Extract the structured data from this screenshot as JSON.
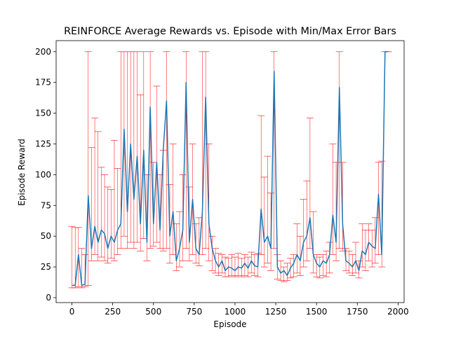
{
  "chart_data": {
    "type": "errorbar-line",
    "title": "REINFORCE Average Rewards vs. Episode with Min/Max Error Bars",
    "x_label": "Episode",
    "y_label": "Episode Reward",
    "xlim": [
      -97,
      2037
    ],
    "ylim": [
      -4,
      209
    ],
    "xticks": [
      0,
      250,
      500,
      750,
      1000,
      1250,
      1500,
      1750,
      2000
    ],
    "yticks": [
      0,
      25,
      50,
      75,
      100,
      125,
      150,
      175,
      200
    ],
    "line_color": "#1f77b4",
    "error_color": "#ff0000",
    "x": [
      0,
      20,
      40,
      60,
      80,
      100,
      120,
      140,
      160,
      180,
      200,
      220,
      240,
      260,
      280,
      300,
      320,
      340,
      360,
      380,
      400,
      420,
      440,
      460,
      480,
      500,
      520,
      540,
      560,
      580,
      600,
      620,
      640,
      660,
      680,
      700,
      720,
      740,
      760,
      780,
      800,
      820,
      840,
      860,
      880,
      900,
      920,
      940,
      960,
      980,
      1000,
      1020,
      1040,
      1060,
      1080,
      1100,
      1120,
      1140,
      1160,
      1180,
      1200,
      1220,
      1240,
      1260,
      1280,
      1300,
      1320,
      1340,
      1360,
      1380,
      1400,
      1420,
      1440,
      1460,
      1480,
      1500,
      1520,
      1540,
      1560,
      1580,
      1600,
      1620,
      1640,
      1660,
      1680,
      1700,
      1720,
      1740,
      1760,
      1780,
      1800,
      1820,
      1840,
      1860,
      1880,
      1900,
      1920,
      1940
    ],
    "values": [
      10,
      10,
      35,
      10,
      11,
      83,
      40,
      58,
      45,
      55,
      52,
      40,
      50,
      45,
      55,
      60,
      137,
      70,
      125,
      80,
      115,
      60,
      120,
      45,
      155,
      60,
      110,
      55,
      120,
      160,
      50,
      70,
      30,
      40,
      55,
      175,
      45,
      80,
      40,
      35,
      70,
      163,
      60,
      40,
      30,
      25,
      30,
      22,
      25,
      24,
      22,
      25,
      24,
      28,
      24,
      30,
      26,
      25,
      72,
      45,
      50,
      40,
      184,
      25,
      20,
      22,
      18,
      24,
      28,
      35,
      30,
      45,
      50,
      65,
      35,
      28,
      25,
      30,
      28,
      35,
      67,
      45,
      171,
      60,
      30,
      28,
      25,
      30,
      22,
      38,
      35,
      45,
      42,
      40,
      84,
      35,
      200,
      200
    ],
    "lower": [
      8,
      8,
      9,
      8,
      9,
      10,
      30,
      35,
      30,
      33,
      30,
      28,
      32,
      30,
      35,
      40,
      50,
      40,
      45,
      40,
      45,
      38,
      48,
      30,
      40,
      42,
      45,
      40,
      38,
      40,
      28,
      35,
      22,
      25,
      30,
      40,
      30,
      35,
      28,
      26,
      35,
      40,
      30,
      22,
      20,
      18,
      20,
      17,
      17,
      18,
      17,
      18,
      17,
      18,
      17,
      20,
      18,
      17,
      35,
      25,
      28,
      22,
      40,
      15,
      14,
      13,
      14,
      16,
      17,
      20,
      18,
      25,
      30,
      40,
      20,
      17,
      16,
      18,
      17,
      20,
      35,
      30,
      40,
      38,
      22,
      20,
      18,
      20,
      16,
      25,
      22,
      30,
      25,
      28,
      35,
      25,
      200,
      200
    ],
    "upper": [
      58,
      57,
      57,
      40,
      35,
      200,
      122,
      146,
      135,
      106,
      100,
      90,
      88,
      128,
      105,
      200,
      200,
      200,
      200,
      200,
      200,
      165,
      200,
      100,
      200,
      110,
      172,
      100,
      120,
      200,
      92,
      125,
      60,
      70,
      100,
      200,
      90,
      125,
      60,
      65,
      200,
      200,
      125,
      50,
      40,
      36,
      35,
      33,
      32,
      35,
      33,
      36,
      32,
      35,
      33,
      37,
      35,
      36,
      148,
      98,
      115,
      85,
      200,
      35,
      30,
      25,
      28,
      32,
      35,
      60,
      50,
      80,
      95,
      146,
      70,
      35,
      33,
      35,
      38,
      45,
      125,
      110,
      200,
      110,
      40,
      38,
      35,
      45,
      30,
      60,
      55,
      60,
      55,
      65,
      110,
      111,
      200,
      200
    ]
  }
}
